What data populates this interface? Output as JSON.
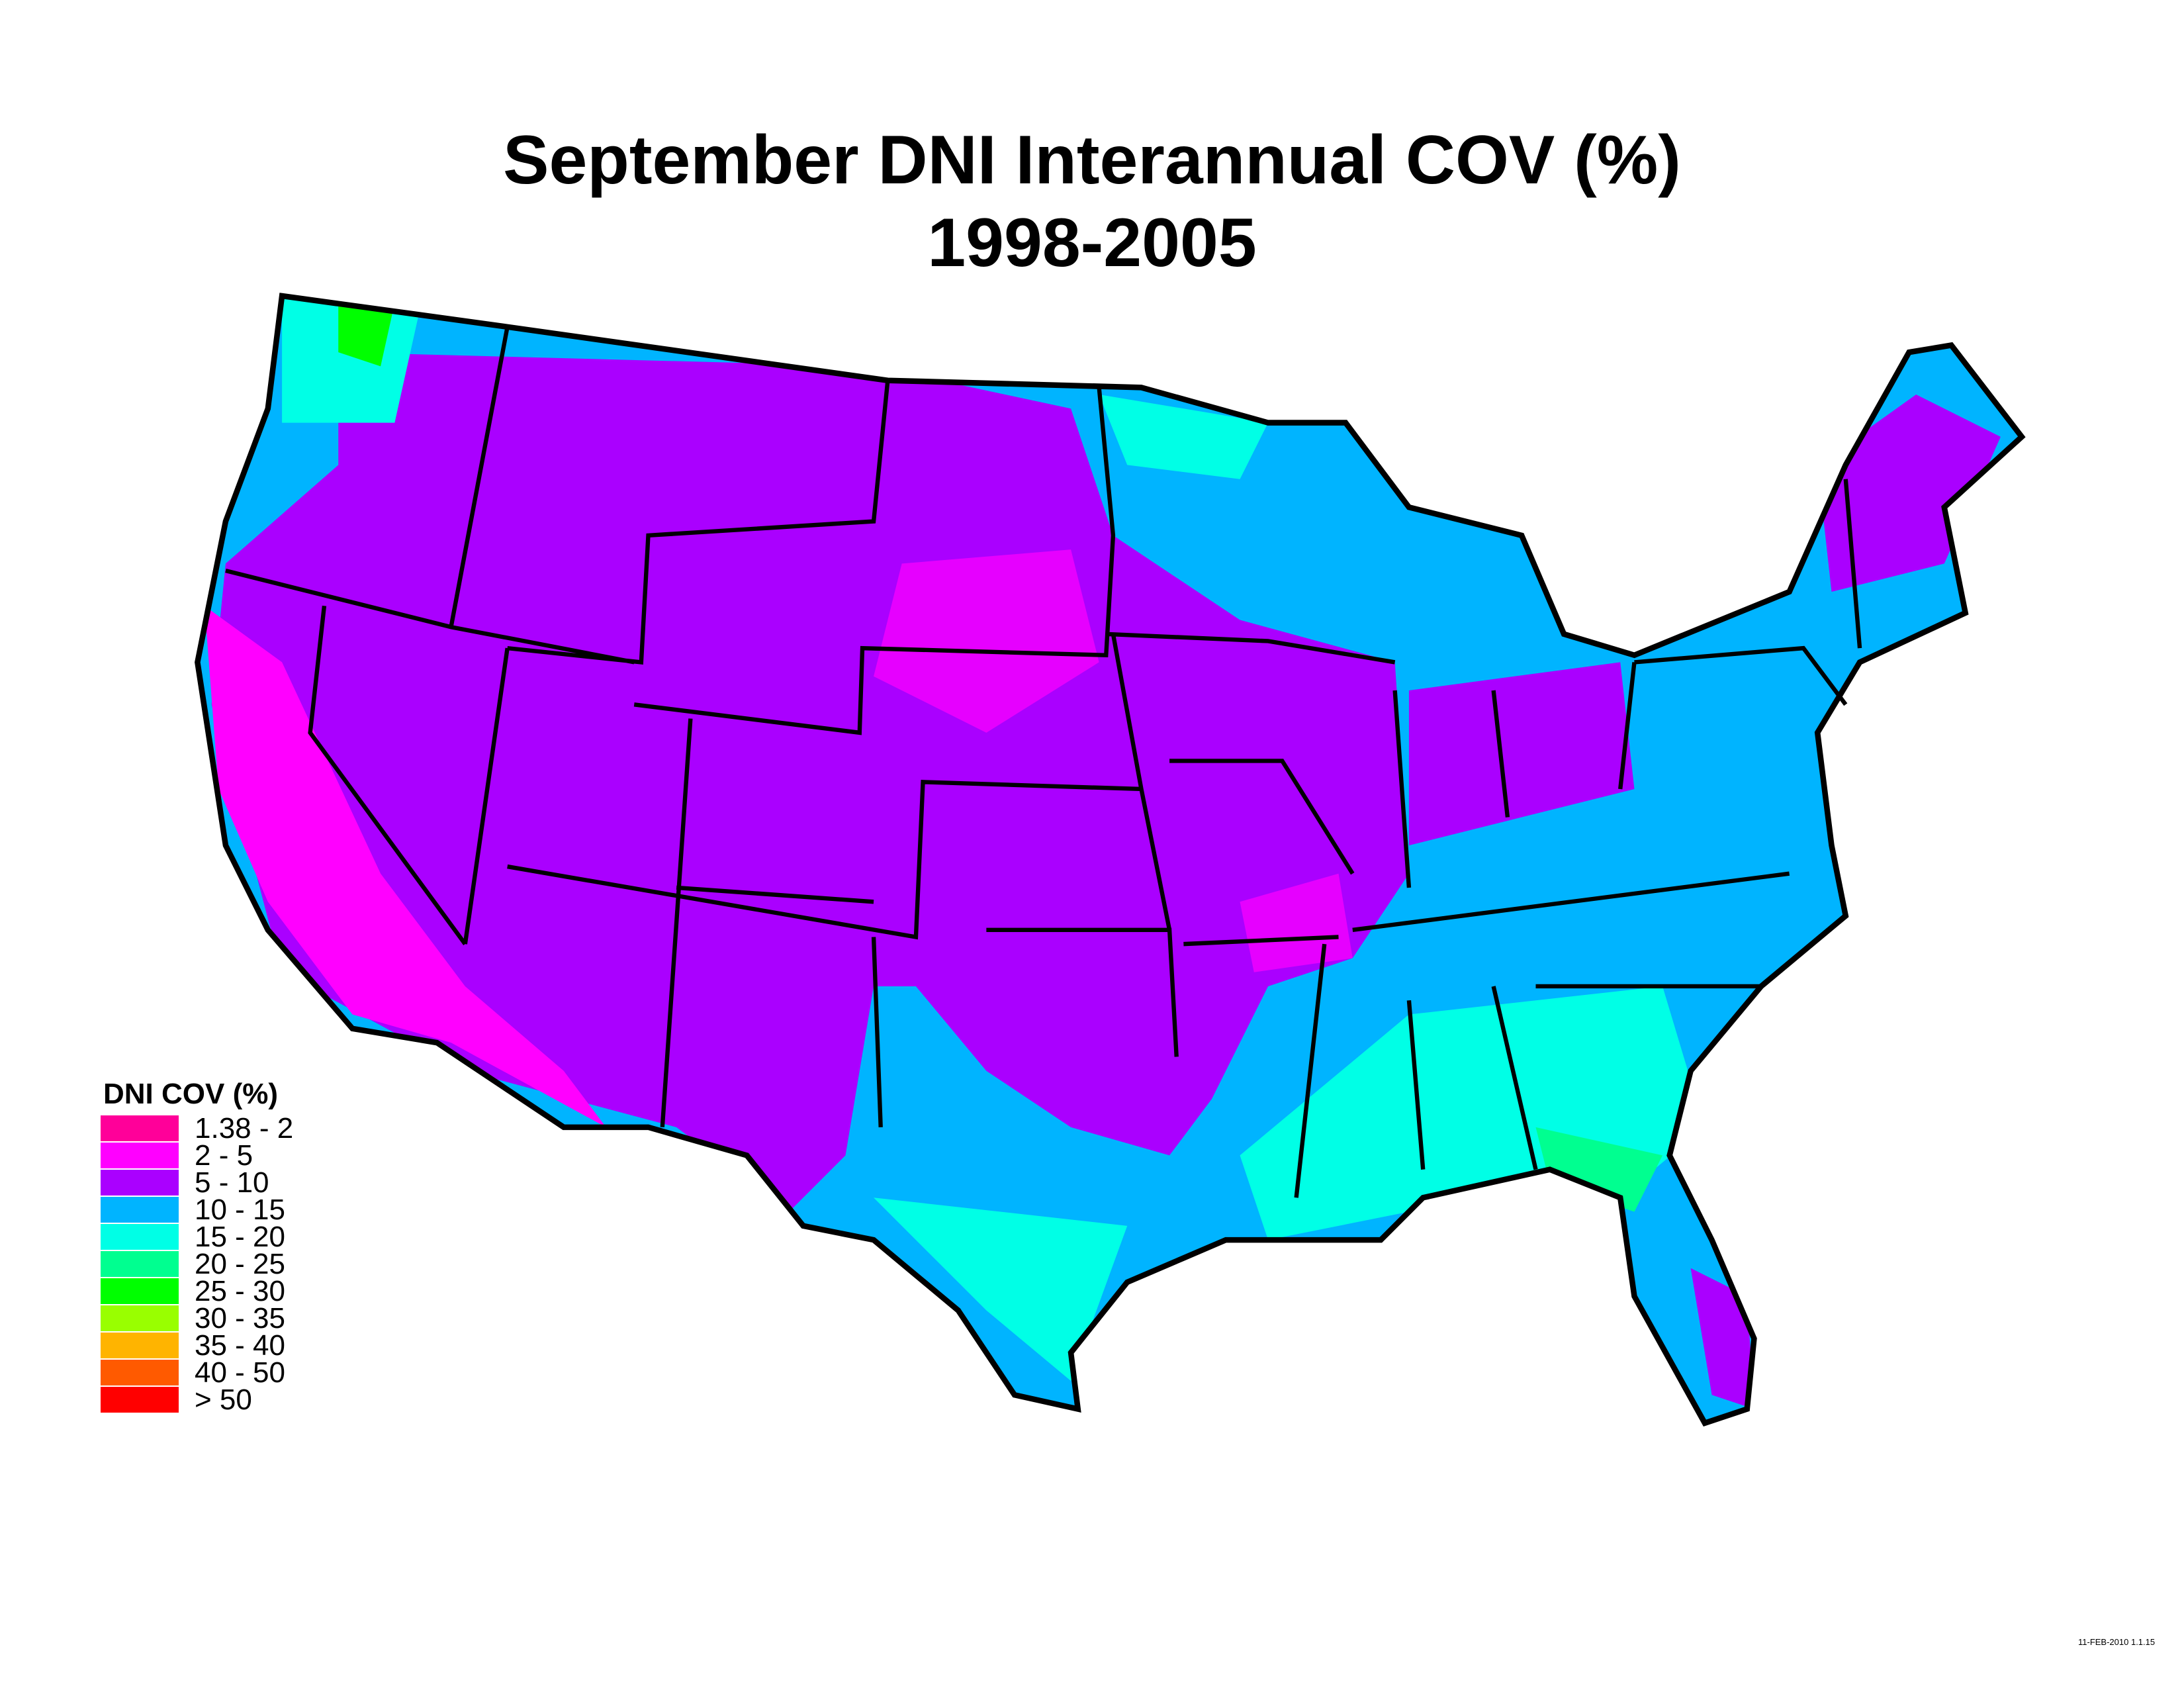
{
  "title": {
    "line1": "September DNI Interannual COV (%)",
    "line2": "1998-2005"
  },
  "legend": {
    "title": "DNI COV (%)",
    "items": [
      {
        "label": "1.38 - 2",
        "color": "#ff0099"
      },
      {
        "label": "2 - 5",
        "color": "#ff00ff"
      },
      {
        "label": "5 - 10",
        "color": "#aa00ff"
      },
      {
        "label": "10 - 15",
        "color": "#00b4ff"
      },
      {
        "label": "15 - 20",
        "color": "#00ffe6"
      },
      {
        "label": "20 - 25",
        "color": "#00ff90"
      },
      {
        "label": "25 - 30",
        "color": "#00ff00"
      },
      {
        "label": "30 - 35",
        "color": "#99ff00"
      },
      {
        "label": "35 - 40",
        "color": "#ffb400"
      },
      {
        "label": "40 - 50",
        "color": "#ff5a00"
      },
      {
        "label": "> 50",
        "color": "#ff0000"
      }
    ]
  },
  "stamp": "11-FEB-2010 1.1.15"
}
